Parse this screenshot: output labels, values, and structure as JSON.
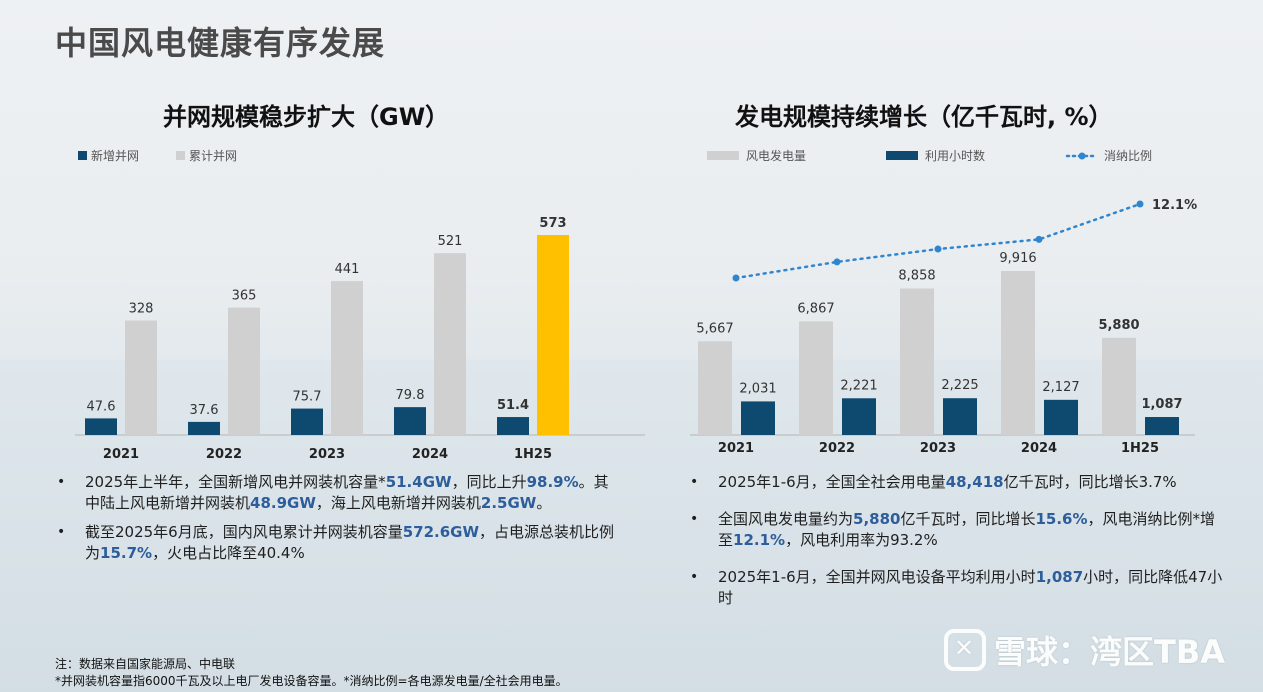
{
  "page": {
    "title": "中国风电健康有序发展"
  },
  "left_chart": {
    "title": "并网规模稳步扩大（GW）",
    "legend": [
      "新增并网",
      "累计并网"
    ],
    "colors": {
      "new": "#0e4a70",
      "cumulative": "#d0d0d0",
      "highlight": "#ffc000"
    }
  },
  "right_chart": {
    "title": "发电规模持续增长（亿千瓦时, %）",
    "legend": [
      "风电发电量",
      "利用小时数",
      "消纳比例"
    ],
    "colors": {
      "generation": "#d0d0d0",
      "hours": "#0e4a70",
      "ratio": "#2f86cf"
    }
  },
  "chart_data": [
    {
      "type": "bar",
      "title": "并网规模稳步扩大（GW）",
      "categories": [
        "2021",
        "2022",
        "2023",
        "2024",
        "1H25"
      ],
      "series": [
        {
          "name": "新增并网",
          "values": [
            47.6,
            37.6,
            75.7,
            79.8,
            51.4
          ],
          "labels": [
            "47.6",
            "37.6",
            "75.7",
            "79.8",
            "51.4"
          ]
        },
        {
          "name": "累计并网",
          "values": [
            328,
            365,
            441,
            521,
            573
          ],
          "labels": [
            "328",
            "365",
            "441",
            "521",
            "573"
          ]
        }
      ],
      "legend_position": "top-left"
    },
    {
      "type": "bar",
      "title": "发电规模持续增长（亿千瓦时, %）",
      "categories": [
        "2021",
        "2022",
        "2023",
        "2024",
        "1H25"
      ],
      "series": [
        {
          "name": "风电发电量",
          "values": [
            5667,
            6867,
            8858,
            9916,
            5880
          ],
          "labels": [
            "5,667",
            "6,867",
            "8,858",
            "9,916",
            "5,880"
          ]
        },
        {
          "name": "利用小时数",
          "values": [
            2031,
            2221,
            2225,
            2127,
            1087
          ],
          "labels": [
            "2,031",
            "2,221",
            "2,225",
            "2,127",
            "1,087"
          ]
        },
        {
          "name": "消纳比例",
          "type": "line",
          "values": [
            9.8,
            10.3,
            10.7,
            11.0,
            12.1
          ],
          "labels": [
            "",
            "",
            "",
            "",
            "12.1%"
          ]
        }
      ],
      "legend_position": "top"
    }
  ],
  "left_bullets": [
    [
      {
        "t": "2025年上半年，全国新增风电并网装机容量*"
      },
      {
        "t": "51.4GW",
        "hl": true
      },
      {
        "t": "，同比上升"
      },
      {
        "t": "98.9%",
        "hl": true
      },
      {
        "t": "。其中陆上风电新增并网装机"
      },
      {
        "t": "48.9GW",
        "hl": true
      },
      {
        "t": "，海上风电新增并网装机"
      },
      {
        "t": "2.5GW",
        "hl": true
      },
      {
        "t": "。"
      }
    ],
    [
      {
        "t": "截至2025年6月底，国内风电累计并网装机容量"
      },
      {
        "t": "572.6GW",
        "hl": true
      },
      {
        "t": "，占电源总装机比例为"
      },
      {
        "t": "15.7%",
        "hl": true
      },
      {
        "t": "，火电占比降至40.4%"
      }
    ]
  ],
  "right_bullets": [
    [
      {
        "t": "2025年1-6月，全国全社会用电量"
      },
      {
        "t": "48,418",
        "hl": true
      },
      {
        "t": "亿千瓦时，同比增长3.7%"
      }
    ],
    [
      {
        "t": "全国风电发电量约为"
      },
      {
        "t": "5,880",
        "hl": true
      },
      {
        "t": "亿千瓦时，同比增长"
      },
      {
        "t": "15.6%",
        "hl": true
      },
      {
        "t": "，风电消纳比例*增至"
      },
      {
        "t": "12.1%",
        "hl": true
      },
      {
        "t": "，风电利用率为93.2%"
      }
    ],
    [
      {
        "t": "2025年1-6月，全国并网风电设备平均利用小时"
      },
      {
        "t": "1,087",
        "hl": true
      },
      {
        "t": "小时，同比降低47小时"
      }
    ]
  ],
  "notes": {
    "line1": "注：数据来自国家能源局、中电联",
    "line2": "*并网装机容量指6000千瓦及以上电厂发电设备容量。*消纳比例=各电源发电量/全社会用电量。"
  },
  "watermark": {
    "text": "雪球：湾区TBA",
    "icon": "xueqiu-logo-icon"
  }
}
